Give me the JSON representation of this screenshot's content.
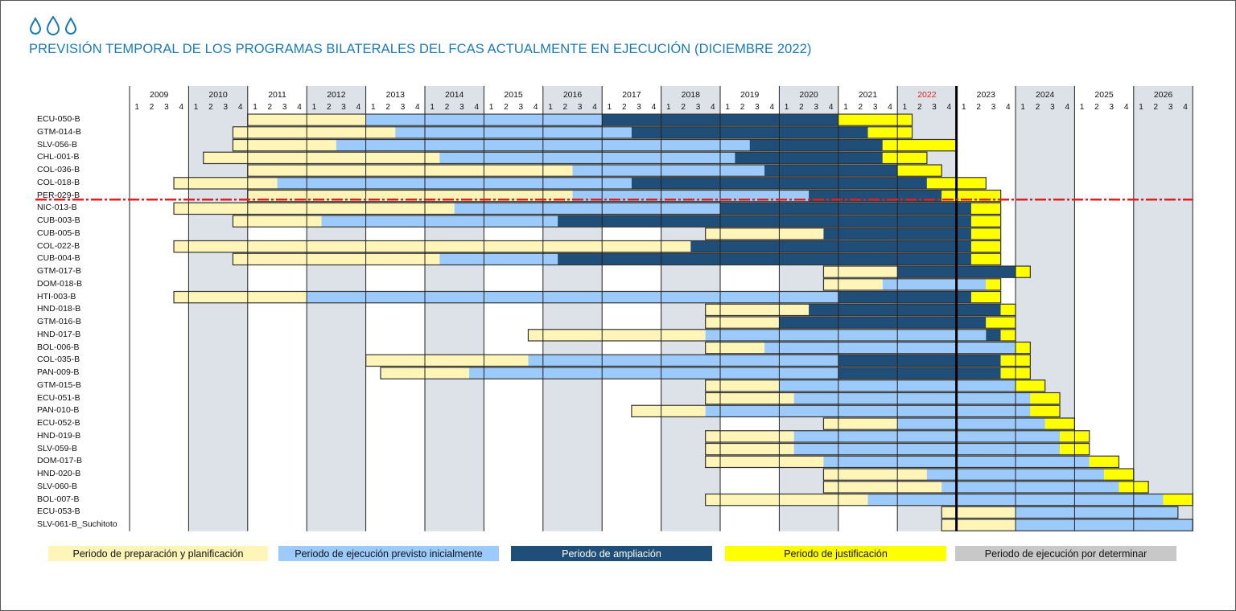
{
  "title": "PREVISIÓN TEMPORAL DE LOS PROGRAMAS BILATERALES DEL FCAS ACTUALMENTE EN EJECUCIÓN (DICIEMBRE 2022)",
  "logo_icon": "water-drops-icon",
  "colors": {
    "prep": "#fff5b8",
    "exec": "#9ccbfb",
    "ext": "#1f4e79",
    "just": "#ffff00",
    "tbd": "#c8c8c8",
    "title": "#1a7ab8",
    "current_year": "#e02020",
    "cutline": "#e02020"
  },
  "chart_data": {
    "type": "gantt",
    "title": "PREVISIÓN TEMPORAL DE LOS PROGRAMAS BILATERALES DEL FCAS ACTUALMENTE EN EJECUCIÓN (DICIEMBRE 2022)",
    "years": [
      "2009",
      "2010",
      "2011",
      "2012",
      "2013",
      "2014",
      "2015",
      "2016",
      "2017",
      "2018",
      "2019",
      "2020",
      "2021",
      "2022",
      "2023",
      "2024",
      "2025",
      "2026"
    ],
    "highlighted_year": "2022",
    "quarter_labels": [
      "1",
      "2",
      "3",
      "4"
    ],
    "time_unit": "quarter index from 2009 Q1 (start inclusive, end exclusive)",
    "current_date_marker": "end of 2022 Q4",
    "divider_after_row": "PER-029-B",
    "legend": [
      {
        "key": "prep",
        "label": "Periodo de preparación y planificación"
      },
      {
        "key": "exec",
        "label": "Periodo de ejecución previsto inicialmente"
      },
      {
        "key": "ext",
        "label": "Periodo de ampliación"
      },
      {
        "key": "just",
        "label": "Periodo de justificación"
      },
      {
        "key": "tbd",
        "label": "Periodo de ejecución por determinar"
      }
    ],
    "programs": [
      {
        "name": "ECU-050-B",
        "segments": [
          [
            "prep",
            8,
            16
          ],
          [
            "exec",
            16,
            32
          ],
          [
            "ext",
            32,
            48
          ],
          [
            "just",
            48,
            53
          ]
        ]
      },
      {
        "name": "GTM-014-B",
        "segments": [
          [
            "prep",
            7,
            18
          ],
          [
            "exec",
            18,
            34
          ],
          [
            "ext",
            34,
            50
          ],
          [
            "just",
            50,
            53
          ]
        ]
      },
      {
        "name": "SLV-056-B",
        "segments": [
          [
            "prep",
            7,
            14
          ],
          [
            "exec",
            14,
            42
          ],
          [
            "ext",
            42,
            51
          ],
          [
            "just",
            51,
            56
          ]
        ]
      },
      {
        "name": "CHL-001-B",
        "segments": [
          [
            "prep",
            5,
            21
          ],
          [
            "exec",
            21,
            41
          ],
          [
            "ext",
            41,
            51
          ],
          [
            "just",
            51,
            54
          ]
        ]
      },
      {
        "name": "COL-036-B",
        "segments": [
          [
            "prep",
            8,
            30
          ],
          [
            "exec",
            30,
            43
          ],
          [
            "ext",
            43,
            52
          ],
          [
            "just",
            52,
            55
          ]
        ]
      },
      {
        "name": "COL-018-B",
        "segments": [
          [
            "prep",
            3,
            10
          ],
          [
            "exec",
            10,
            34
          ],
          [
            "ext",
            34,
            54
          ],
          [
            "just",
            54,
            58
          ]
        ]
      },
      {
        "name": "PER-029-B",
        "segments": [
          [
            "prep",
            8,
            30
          ],
          [
            "exec",
            30,
            46
          ],
          [
            "ext",
            46,
            55
          ],
          [
            "just",
            55,
            59
          ]
        ]
      },
      {
        "name": "NIC-013-B",
        "segments": [
          [
            "prep",
            3,
            22
          ],
          [
            "exec",
            22,
            40
          ],
          [
            "ext",
            40,
            57
          ],
          [
            "just",
            57,
            59
          ]
        ]
      },
      {
        "name": "CUB-003-B",
        "segments": [
          [
            "prep",
            7,
            13
          ],
          [
            "exec",
            13,
            29
          ],
          [
            "ext",
            29,
            57
          ],
          [
            "just",
            57,
            59
          ]
        ]
      },
      {
        "name": "CUB-005-B",
        "segments": [
          [
            "prep",
            39,
            47
          ],
          [
            "ext",
            47,
            57
          ],
          [
            "just",
            57,
            59
          ]
        ]
      },
      {
        "name": "COL-022-B",
        "segments": [
          [
            "prep",
            3,
            38
          ],
          [
            "ext",
            38,
            57
          ],
          [
            "just",
            57,
            59
          ]
        ]
      },
      {
        "name": "CUB-004-B",
        "segments": [
          [
            "prep",
            7,
            21
          ],
          [
            "exec",
            21,
            29
          ],
          [
            "ext",
            29,
            57
          ],
          [
            "just",
            57,
            59
          ]
        ]
      },
      {
        "name": "GTM-017-B",
        "segments": [
          [
            "prep",
            47,
            52
          ],
          [
            "ext",
            52,
            60
          ],
          [
            "just",
            60,
            61
          ]
        ]
      },
      {
        "name": "DOM-018-B",
        "segments": [
          [
            "prep",
            47,
            51
          ],
          [
            "exec",
            51,
            58
          ],
          [
            "just",
            58,
            59
          ]
        ]
      },
      {
        "name": "HTI-003-B",
        "segments": [
          [
            "prep",
            3,
            12
          ],
          [
            "exec",
            12,
            48
          ],
          [
            "ext",
            48,
            57
          ],
          [
            "just",
            57,
            59
          ]
        ]
      },
      {
        "name": "HND-018-B",
        "segments": [
          [
            "prep",
            39,
            46
          ],
          [
            "ext",
            46,
            59
          ],
          [
            "just",
            59,
            60
          ]
        ]
      },
      {
        "name": "GTM-016-B",
        "segments": [
          [
            "prep",
            39,
            44
          ],
          [
            "ext",
            44,
            58
          ],
          [
            "just",
            58,
            60
          ]
        ]
      },
      {
        "name": "HND-017-B",
        "segments": [
          [
            "prep",
            27,
            39
          ],
          [
            "exec",
            39,
            58
          ],
          [
            "ext",
            58,
            59
          ],
          [
            "just",
            59,
            60
          ]
        ]
      },
      {
        "name": "BOL-006-B",
        "segments": [
          [
            "prep",
            39,
            43
          ],
          [
            "exec",
            43,
            60
          ],
          [
            "just",
            60,
            61
          ]
        ]
      },
      {
        "name": "COL-035-B",
        "segments": [
          [
            "prep",
            16,
            27
          ],
          [
            "exec",
            27,
            48
          ],
          [
            "ext",
            48,
            59
          ],
          [
            "just",
            59,
            61
          ]
        ]
      },
      {
        "name": "PAN-009-B",
        "segments": [
          [
            "prep",
            17,
            23
          ],
          [
            "exec",
            23,
            48
          ],
          [
            "ext",
            48,
            59
          ],
          [
            "just",
            59,
            61
          ]
        ]
      },
      {
        "name": "GTM-015-B",
        "segments": [
          [
            "prep",
            39,
            44
          ],
          [
            "exec",
            44,
            60
          ],
          [
            "just",
            60,
            62
          ]
        ]
      },
      {
        "name": "ECU-051-B",
        "segments": [
          [
            "prep",
            39,
            45
          ],
          [
            "exec",
            45,
            61
          ],
          [
            "just",
            61,
            63
          ]
        ]
      },
      {
        "name": "PAN-010-B",
        "segments": [
          [
            "prep",
            34,
            39
          ],
          [
            "exec",
            39,
            61
          ],
          [
            "just",
            61,
            63
          ]
        ]
      },
      {
        "name": "ECU-052-B",
        "segments": [
          [
            "prep",
            47,
            52
          ],
          [
            "exec",
            52,
            62
          ],
          [
            "just",
            62,
            64
          ]
        ]
      },
      {
        "name": "HND-019-B",
        "segments": [
          [
            "prep",
            39,
            45
          ],
          [
            "exec",
            45,
            63
          ],
          [
            "just",
            63,
            65
          ]
        ]
      },
      {
        "name": "SLV-059-B",
        "segments": [
          [
            "prep",
            39,
            45
          ],
          [
            "exec",
            45,
            63
          ],
          [
            "just",
            63,
            65
          ]
        ]
      },
      {
        "name": "DOM-017-B",
        "segments": [
          [
            "prep",
            39,
            47
          ],
          [
            "exec",
            47,
            65
          ],
          [
            "just",
            65,
            67
          ]
        ]
      },
      {
        "name": "HND-020-B",
        "segments": [
          [
            "prep",
            47,
            54
          ],
          [
            "exec",
            54,
            66
          ],
          [
            "just",
            66,
            68
          ]
        ]
      },
      {
        "name": "SLV-060-B",
        "segments": [
          [
            "prep",
            47,
            55
          ],
          [
            "exec",
            55,
            67
          ],
          [
            "just",
            67,
            69
          ]
        ]
      },
      {
        "name": "BOL-007-B",
        "segments": [
          [
            "prep",
            39,
            50
          ],
          [
            "exec",
            50,
            70
          ],
          [
            "just",
            70,
            72
          ]
        ]
      },
      {
        "name": "ECU-053-B",
        "segments": [
          [
            "prep",
            55,
            60
          ],
          [
            "exec",
            60,
            71
          ]
        ]
      },
      {
        "name": "SLV-061-B_Suchitoto",
        "segments": [
          [
            "prep",
            55,
            60
          ],
          [
            "exec",
            60,
            72
          ]
        ]
      }
    ]
  }
}
